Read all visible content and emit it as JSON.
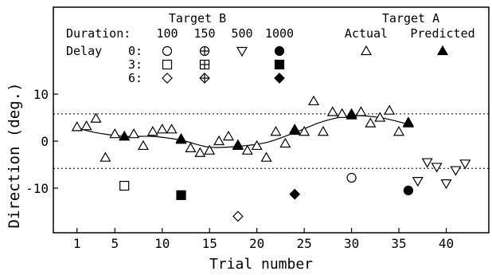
{
  "chart_data": {
    "type": "scatter",
    "xlabel": "Trial number",
    "ylabel": "Direction (deg.)",
    "xlim": [
      -1.5,
      44.5
    ],
    "ylim": [
      -19.5,
      28.5
    ],
    "x_ticks": [
      1,
      5,
      10,
      15,
      20,
      25,
      30,
      35,
      40
    ],
    "y_ticks": [
      10,
      0,
      -10
    ],
    "reference_lines": [
      5.8,
      -5.8
    ],
    "legend": {
      "group_target_b": "Target B",
      "group_target_a": "Target A",
      "duration_label": "Duration:",
      "durations": [
        "100",
        "150",
        "500",
        "1000"
      ],
      "actual_label": "Actual",
      "predicted_label": "Predicted",
      "delay_label": "Delay",
      "delays": [
        "0:",
        "3:",
        "6:"
      ]
    },
    "series": [
      {
        "key": "actual",
        "marker": "triangle-up-open",
        "x": [
          1,
          2,
          3,
          4,
          5,
          6,
          7,
          8,
          9,
          10,
          11,
          12,
          13,
          14,
          15,
          16,
          17,
          18,
          19,
          20,
          21,
          22,
          23,
          24,
          25,
          26,
          27,
          28,
          29,
          30,
          31,
          32,
          33,
          34,
          35,
          36
        ],
        "y": [
          3.0,
          3.2,
          4.8,
          -3.5,
          1.5,
          1.0,
          1.5,
          -1.0,
          2.0,
          2.5,
          2.5,
          0.5,
          -1.5,
          -2.5,
          -2.0,
          0.0,
          1.0,
          -1.0,
          -2.0,
          -1.0,
          -3.5,
          2.0,
          -0.5,
          2.5,
          2.0,
          8.5,
          2.0,
          6.2,
          5.8,
          5.8,
          6.2,
          3.8,
          5.0,
          6.5,
          2.0,
          4.0
        ]
      },
      {
        "key": "predicted",
        "marker": "triangle-up-filled",
        "x": [
          6,
          12,
          18,
          24,
          30,
          36
        ],
        "y": [
          1.0,
          0.3,
          -0.8,
          2.2,
          5.5,
          3.8
        ]
      },
      {
        "key": "target-b-100-delay-0",
        "marker": "circle-open",
        "x": [
          30
        ],
        "y": [
          -7.8
        ]
      },
      {
        "key": "target-b-100-delay-3",
        "marker": "square-open",
        "x": [
          6
        ],
        "y": [
          -9.5
        ]
      },
      {
        "key": "target-b-100-delay-6",
        "marker": "diamond-open",
        "x": [
          18
        ],
        "y": [
          -16.0
        ]
      },
      {
        "key": "target-b-1000-delay-0",
        "marker": "circle-filled",
        "x": [
          36
        ],
        "y": [
          -10.5
        ]
      },
      {
        "key": "target-b-1000-delay-3",
        "marker": "square-filled",
        "x": [
          12
        ],
        "y": [
          -11.5
        ]
      },
      {
        "key": "target-b-1000-delay-6",
        "marker": "diamond-filled",
        "x": [
          24
        ],
        "y": [
          -11.3
        ]
      },
      {
        "key": "target-b-500-delay-0",
        "marker": "triangle-down-open",
        "x": [
          37,
          38,
          39,
          40,
          41,
          42
        ],
        "y": [
          -8.5,
          -4.5,
          -5.5,
          -9.0,
          -6.2,
          -4.8
        ]
      }
    ],
    "fit_curve": {
      "x": [
        1,
        3,
        6,
        9,
        12,
        15,
        18,
        21,
        24,
        27,
        30,
        33,
        36
      ],
      "y": [
        2.8,
        1.8,
        1.0,
        1.0,
        0.2,
        -1.3,
        -1.1,
        -0.3,
        1.8,
        4.2,
        5.4,
        5.0,
        3.6
      ]
    }
  }
}
